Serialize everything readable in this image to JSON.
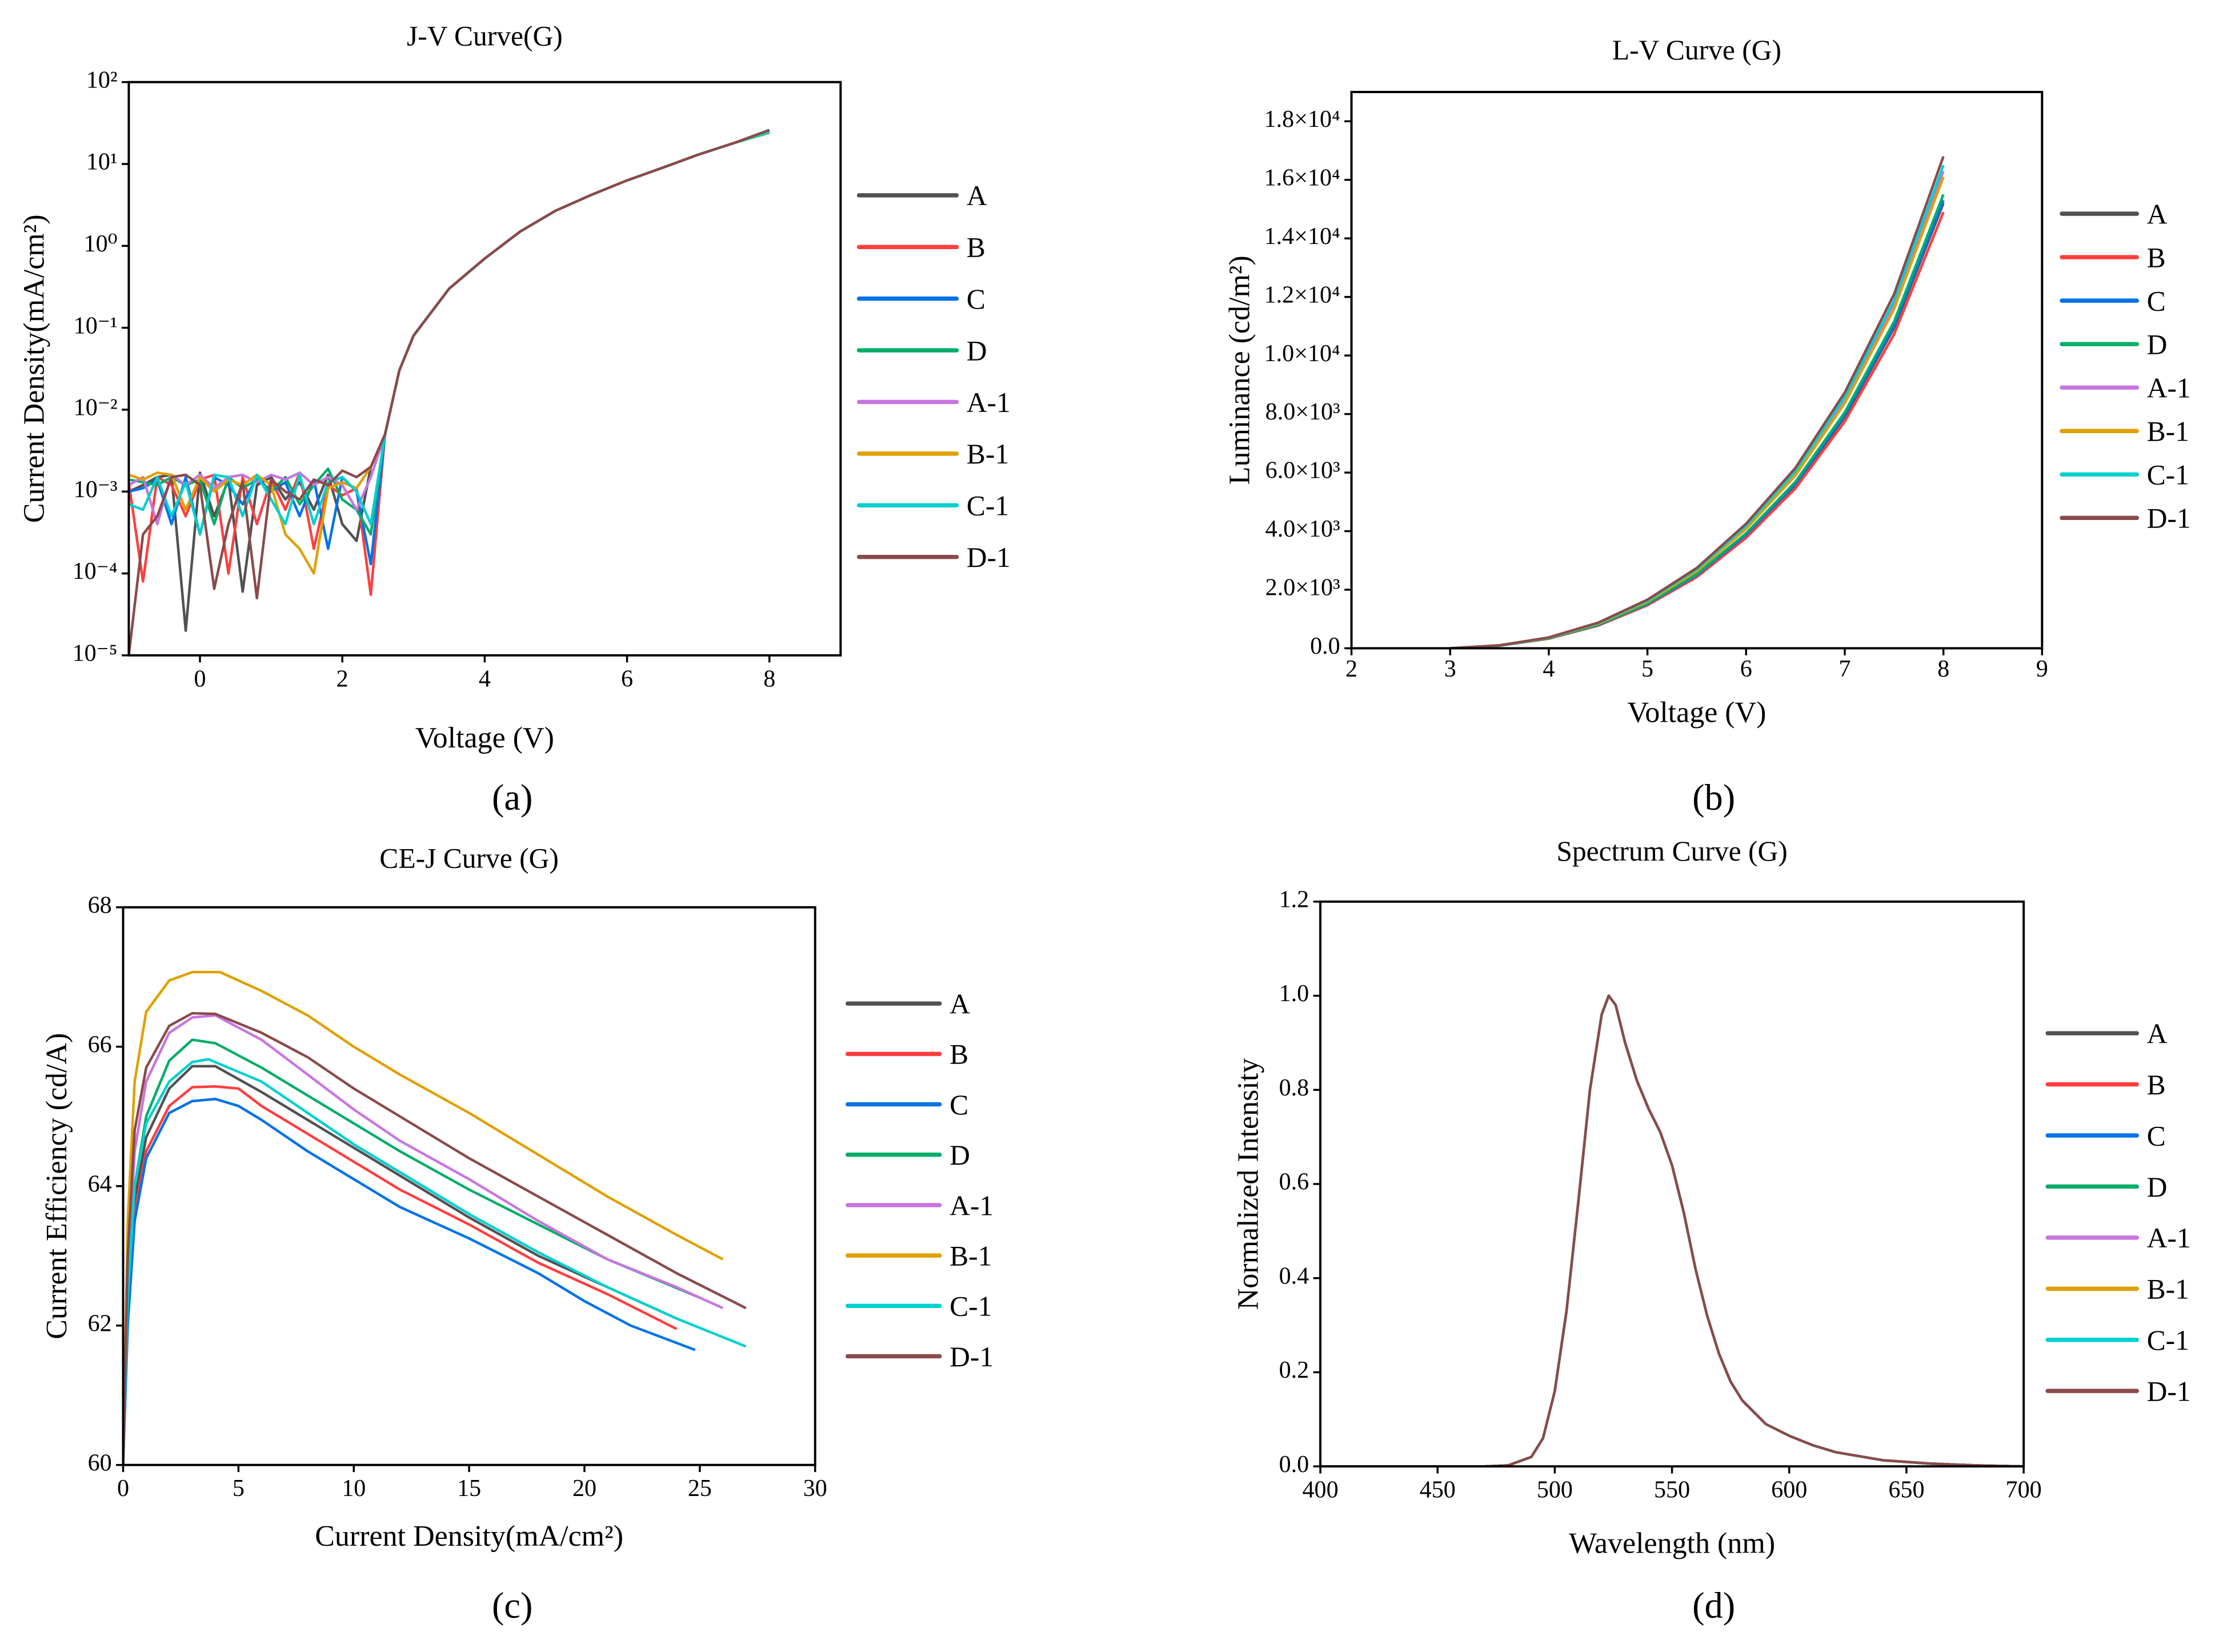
{
  "panel_labels": [
    "(a)",
    "(b)",
    "(c)",
    "(d)"
  ],
  "chart_data": [
    {
      "type": "line",
      "title": "J-V Curve(G)",
      "xlabel": "Voltage (V)",
      "ylabel": "Current Density(mA/cm²)",
      "xlim": [
        -1,
        9
      ],
      "ylim": [
        1e-05,
        100
      ],
      "yscale": "log",
      "x_ticks": [
        0,
        2,
        4,
        6,
        8
      ],
      "x_tick_labels": [
        "0",
        "2",
        "4",
        "6",
        "8"
      ],
      "y_ticks": [
        1e-05,
        0.0001,
        0.001,
        0.01,
        0.1,
        1,
        10,
        100
      ],
      "y_tick_labels": [
        "10⁻⁵",
        "10⁻⁴",
        "10⁻³",
        "10⁻²",
        "10⁻¹",
        "10⁰",
        "10¹",
        "10²"
      ],
      "legend_position": "right",
      "x": [
        -1,
        -0.8,
        -0.6,
        -0.4,
        -0.2,
        0,
        0.2,
        0.4,
        0.6,
        0.8,
        1,
        1.2,
        1.4,
        1.6,
        1.8,
        2,
        2.2,
        2.4,
        2.6,
        2.8,
        3,
        3.5,
        4,
        4.5,
        5,
        5.5,
        6,
        6.5,
        7,
        7.5,
        8
      ],
      "series": [
        {
          "name": "A",
          "color": "#515151",
          "values": [
            0.001,
            0.0012,
            0.0015,
            0.0016,
            2e-05,
            0.0017,
            0.0005,
            0.0014,
            6e-05,
            0.0012,
            0.0015,
            0.0008,
            0.0013,
            0.0006,
            0.0016,
            0.0004,
            0.00025,
            0.002,
            0.005,
            0.03,
            0.08,
            0.3,
            0.7,
            1.5,
            2.7,
            4.2,
            6.3,
            9,
            13,
            18,
            25.5
          ]
        },
        {
          "name": "B",
          "color": "#ff3e3e",
          "values": [
            0.0013,
            8e-05,
            0.0015,
            0.0012,
            0.0005,
            0.0014,
            0.0016,
            0.0001,
            0.0015,
            0.0004,
            0.0014,
            0.0006,
            0.0017,
            0.0002,
            0.0012,
            0.0009,
            0.0011,
            5.5e-05,
            0.005,
            0.03,
            0.08,
            0.3,
            0.7,
            1.5,
            2.7,
            4.2,
            6.3,
            9,
            13,
            18,
            25
          ]
        },
        {
          "name": "C",
          "color": "#0072e8",
          "values": [
            0.001,
            0.0011,
            0.0014,
            0.0004,
            0.0015,
            0.0003,
            0.0015,
            0.0012,
            0.0007,
            0.0015,
            0.001,
            0.0013,
            0.0005,
            0.0014,
            0.0002,
            0.0015,
            0.001,
            0.00013,
            0.005,
            0.03,
            0.08,
            0.3,
            0.7,
            1.5,
            2.7,
            4.2,
            6.3,
            9,
            13,
            18,
            24.5
          ]
        },
        {
          "name": "D",
          "color": "#00ad68",
          "values": [
            0.0014,
            0.0013,
            0.0012,
            0.0015,
            0.0012,
            0.0014,
            0.0004,
            0.0015,
            0.0011,
            0.0014,
            0.001,
            0.0015,
            0.0007,
            0.0012,
            0.0019,
            0.0008,
            0.0006,
            0.0003,
            0.005,
            0.03,
            0.08,
            0.3,
            0.7,
            1.5,
            2.7,
            4.2,
            6.3,
            9,
            13,
            18,
            24
          ]
        },
        {
          "name": "A-1",
          "color": "#c875e0",
          "values": [
            0.0012,
            0.0015,
            0.0004,
            0.0016,
            0.0012,
            0.0016,
            0.0011,
            0.0015,
            0.0016,
            0.0013,
            0.0016,
            0.0014,
            0.0017,
            0.0012,
            0.0015,
            0.0012,
            0.0006,
            0.0015,
            0.005,
            0.03,
            0.08,
            0.3,
            0.7,
            1.5,
            2.7,
            4.2,
            6.3,
            9,
            13,
            18,
            25
          ]
        },
        {
          "name": "B-1",
          "color": "#e0a000",
          "values": [
            0.0016,
            0.0014,
            0.0017,
            0.0016,
            0.0006,
            0.0015,
            0.001,
            0.0014,
            0.0012,
            0.0016,
            0.0012,
            0.0003,
            0.0002,
            0.0001,
            0.0011,
            0.0013,
            0.0011,
            0.002,
            0.005,
            0.03,
            0.08,
            0.3,
            0.7,
            1.5,
            2.7,
            4.2,
            6.3,
            9,
            13,
            18,
            24
          ]
        },
        {
          "name": "C-1",
          "color": "#00d0d0",
          "values": [
            0.0007,
            0.0006,
            0.0015,
            0.0005,
            0.0013,
            0.0003,
            0.0016,
            0.0015,
            0.0005,
            0.0016,
            0.0008,
            0.0004,
            0.0016,
            0.0004,
            0.0013,
            0.0015,
            0.001,
            0.0004,
            0.005,
            0.03,
            0.08,
            0.3,
            0.7,
            1.5,
            2.7,
            4.2,
            6.3,
            9,
            13,
            18,
            24.5
          ]
        },
        {
          "name": "D-1",
          "color": "#8a4a4a",
          "values": [
            1e-05,
            0.0003,
            0.0005,
            0.0015,
            0.0016,
            0.0012,
            6.5e-05,
            0.0004,
            0.0013,
            5e-05,
            0.0014,
            0.001,
            0.0008,
            0.0014,
            0.0012,
            0.0018,
            0.0015,
            0.002,
            0.005,
            0.03,
            0.08,
            0.3,
            0.7,
            1.5,
            2.7,
            4.2,
            6.3,
            9,
            13,
            18,
            26
          ]
        }
      ]
    },
    {
      "type": "line",
      "title": "L-V Curve (G)",
      "xlabel": "Voltage (V)",
      "ylabel": "Luminance (cd/m²)",
      "xlim": [
        2,
        9
      ],
      "ylim": [
        0,
        19000
      ],
      "yscale": "linear",
      "x_ticks": [
        2,
        3,
        4,
        5,
        6,
        7,
        8,
        9
      ],
      "x_tick_labels": [
        "2",
        "3",
        "4",
        "5",
        "6",
        "7",
        "8",
        "9"
      ],
      "y_ticks": [
        0,
        2000,
        4000,
        6000,
        8000,
        10000,
        12000,
        14000,
        16000,
        18000
      ],
      "y_tick_labels": [
        "0.0",
        "2.0×10³",
        "4.0×10³",
        "6.0×10³",
        "8.0×10³",
        "1.0×10⁴",
        "1.2×10⁴",
        "1.4×10⁴",
        "1.6×10⁴",
        "1.8×10⁴"
      ],
      "legend_position": "right",
      "x": [
        3,
        3.5,
        4,
        4.5,
        5,
        5.5,
        6,
        6.5,
        7,
        7.5,
        8
      ],
      "series": [
        {
          "name": "A",
          "color": "#515151",
          "values": [
            0,
            91,
            334,
            790,
            1499,
            2482,
            3849,
            5572,
            7901,
            10940,
            15200
          ]
        },
        {
          "name": "B",
          "color": "#ff3e3e",
          "values": [
            0,
            89,
            328,
            775,
            1470,
            2433,
            3773,
            5462,
            7745,
            10724,
            14900
          ]
        },
        {
          "name": "C",
          "color": "#0072e8",
          "values": [
            0,
            92,
            337,
            796,
            1510,
            2499,
            3876,
            5610,
            7956,
            11016,
            15300
          ]
        },
        {
          "name": "D",
          "color": "#00ad68",
          "values": [
            0,
            93,
            341,
            806,
            1529,
            2531,
            3925,
            5682,
            8057,
            11156,
            15500
          ]
        },
        {
          "name": "A-1",
          "color": "#c875e0",
          "values": [
            0,
            98,
            359,
            848,
            1609,
            2663,
            4131,
            5979,
            8479,
            11740,
            16300
          ]
        },
        {
          "name": "B-1",
          "color": "#e0a000",
          "values": [
            0,
            97,
            354,
            837,
            1588,
            2629,
            4077,
            5902,
            8369,
            11588,
            16100
          ]
        },
        {
          "name": "C-1",
          "color": "#00d0d0",
          "values": [
            0,
            99,
            363,
            858,
            1628,
            2695,
            4180,
            6050,
            8580,
            11880,
            16500
          ]
        },
        {
          "name": "D-1",
          "color": "#8a4a4a",
          "values": [
            0,
            101,
            370,
            874,
            1658,
            2744,
            4256,
            6160,
            8736,
            12096,
            16800
          ]
        }
      ]
    },
    {
      "type": "line",
      "title": "CE-J Curve (G)",
      "xlabel": "Current Density(mA/cm²)",
      "ylabel": "Current Efficiency (cd/A)",
      "xlim": [
        0,
        30
      ],
      "ylim": [
        60,
        68
      ],
      "yscale": "linear",
      "x_ticks": [
        0,
        5,
        10,
        15,
        20,
        25,
        30
      ],
      "x_tick_labels": [
        "0",
        "5",
        "10",
        "15",
        "20",
        "25",
        "30"
      ],
      "y_ticks": [
        60,
        62,
        64,
        66,
        68
      ],
      "y_tick_labels": [
        "60",
        "62",
        "64",
        "66",
        "68"
      ],
      "legend_position": "right",
      "series": [
        {
          "name": "A",
          "color": "#515151",
          "x": [
            0,
            0.2,
            0.5,
            1,
            2,
            3,
            4,
            6,
            8,
            10,
            12,
            15,
            18,
            21,
            24
          ],
          "values": [
            60,
            62.3,
            63.8,
            64.7,
            65.4,
            65.72,
            65.72,
            65.35,
            64.95,
            64.55,
            64.15,
            63.55,
            63.0,
            62.55,
            62.1
          ]
        },
        {
          "name": "B",
          "color": "#ff3e3e",
          "x": [
            0,
            0.2,
            0.5,
            1,
            2,
            3,
            4,
            5,
            6,
            8,
            10,
            12,
            15,
            18,
            21,
            24
          ],
          "values": [
            60,
            62.2,
            63.6,
            64.5,
            65.15,
            65.42,
            65.43,
            65.4,
            65.15,
            64.75,
            64.35,
            63.95,
            63.45,
            62.9,
            62.45,
            61.95
          ]
        },
        {
          "name": "C",
          "color": "#0072e8",
          "x": [
            0,
            0.2,
            0.5,
            1,
            2,
            3,
            4,
            5,
            6,
            8,
            10,
            12,
            15,
            18,
            20,
            22,
            24.8
          ],
          "values": [
            60,
            62,
            63.5,
            64.4,
            65.05,
            65.22,
            65.25,
            65.15,
            64.95,
            64.5,
            64.1,
            63.7,
            63.25,
            62.75,
            62.35,
            62.0,
            61.65
          ]
        },
        {
          "name": "D",
          "color": "#00ad68",
          "x": [
            0,
            0.2,
            0.5,
            1,
            2,
            3,
            4,
            6,
            8,
            10,
            12,
            15,
            18,
            21,
            25
          ],
          "values": [
            60,
            62.5,
            64,
            65,
            65.8,
            66.1,
            66.05,
            65.7,
            65.3,
            64.9,
            64.5,
            63.95,
            63.45,
            62.95,
            62.4
          ]
        },
        {
          "name": "A-1",
          "color": "#c875e0",
          "x": [
            0,
            0.2,
            0.5,
            1,
            2,
            3,
            4,
            6,
            8,
            10,
            12,
            15,
            18,
            21,
            24,
            26
          ],
          "values": [
            60,
            62.8,
            64.5,
            65.5,
            66.2,
            66.42,
            66.45,
            66.1,
            65.6,
            65.1,
            64.65,
            64.1,
            63.5,
            62.95,
            62.55,
            62.25
          ]
        },
        {
          "name": "B-1",
          "color": "#e0a000",
          "x": [
            0,
            0.2,
            0.5,
            1,
            2,
            3,
            4.2,
            6,
            8,
            10,
            12,
            15,
            18,
            21,
            24,
            26
          ],
          "values": [
            60,
            63.5,
            65.5,
            66.5,
            66.95,
            67.07,
            67.07,
            66.8,
            66.45,
            66.0,
            65.6,
            65.05,
            64.45,
            63.85,
            63.3,
            62.95
          ]
        },
        {
          "name": "C-1",
          "color": "#00d0d0",
          "x": [
            0,
            0.2,
            0.5,
            1,
            2,
            3,
            3.7,
            6,
            8,
            10,
            12,
            15,
            18,
            21,
            24,
            27
          ],
          "values": [
            60,
            62.4,
            64,
            64.9,
            65.5,
            65.78,
            65.82,
            65.5,
            65.05,
            64.6,
            64.2,
            63.6,
            63.05,
            62.55,
            62.1,
            61.7
          ]
        },
        {
          "name": "D-1",
          "color": "#8a4a4a",
          "x": [
            0,
            0.2,
            0.5,
            1,
            2,
            3,
            4,
            6,
            8,
            10,
            12,
            15,
            18,
            21,
            24,
            27
          ],
          "values": [
            60,
            63,
            64.8,
            65.7,
            66.3,
            66.48,
            66.47,
            66.2,
            65.85,
            65.4,
            65.0,
            64.4,
            63.85,
            63.3,
            62.75,
            62.25
          ]
        }
      ]
    },
    {
      "type": "line",
      "title": "Spectrum Curve (G)",
      "xlabel": "Wavelength (nm)",
      "ylabel": "Normalized Intensity",
      "xlim": [
        400,
        700
      ],
      "ylim": [
        0,
        1.2
      ],
      "yscale": "linear",
      "x_ticks": [
        400,
        450,
        500,
        550,
        600,
        650,
        700
      ],
      "x_tick_labels": [
        "400",
        "450",
        "500",
        "550",
        "600",
        "650",
        "700"
      ],
      "y_ticks": [
        0,
        0.2,
        0.4,
        0.6,
        0.8,
        1.0,
        1.2
      ],
      "y_tick_labels": [
        "0.0",
        "0.2",
        "0.4",
        "0.6",
        "0.8",
        "1.0",
        "1.2"
      ],
      "legend_position": "right",
      "x": [
        400,
        470,
        480,
        490,
        495,
        500,
        505,
        510,
        515,
        520,
        523,
        526,
        530,
        535,
        540,
        545,
        550,
        555,
        560,
        565,
        570,
        575,
        580,
        590,
        600,
        610,
        620,
        640,
        660,
        680,
        700
      ],
      "values": [
        0,
        0,
        0.002,
        0.02,
        0.06,
        0.16,
        0.33,
        0.56,
        0.8,
        0.96,
        1.0,
        0.98,
        0.9,
        0.82,
        0.76,
        0.71,
        0.64,
        0.54,
        0.42,
        0.32,
        0.24,
        0.18,
        0.14,
        0.09,
        0.065,
        0.045,
        0.03,
        0.013,
        0.006,
        0.002,
        0
      ],
      "series": [
        {
          "name": "A",
          "color": "#515151"
        },
        {
          "name": "B",
          "color": "#ff3e3e"
        },
        {
          "name": "C",
          "color": "#0072e8"
        },
        {
          "name": "D",
          "color": "#00ad68"
        },
        {
          "name": "A-1",
          "color": "#c875e0"
        },
        {
          "name": "B-1",
          "color": "#e0a000"
        },
        {
          "name": "C-1",
          "color": "#00d0d0"
        },
        {
          "name": "D-1",
          "color": "#8a4a4a"
        }
      ]
    }
  ]
}
